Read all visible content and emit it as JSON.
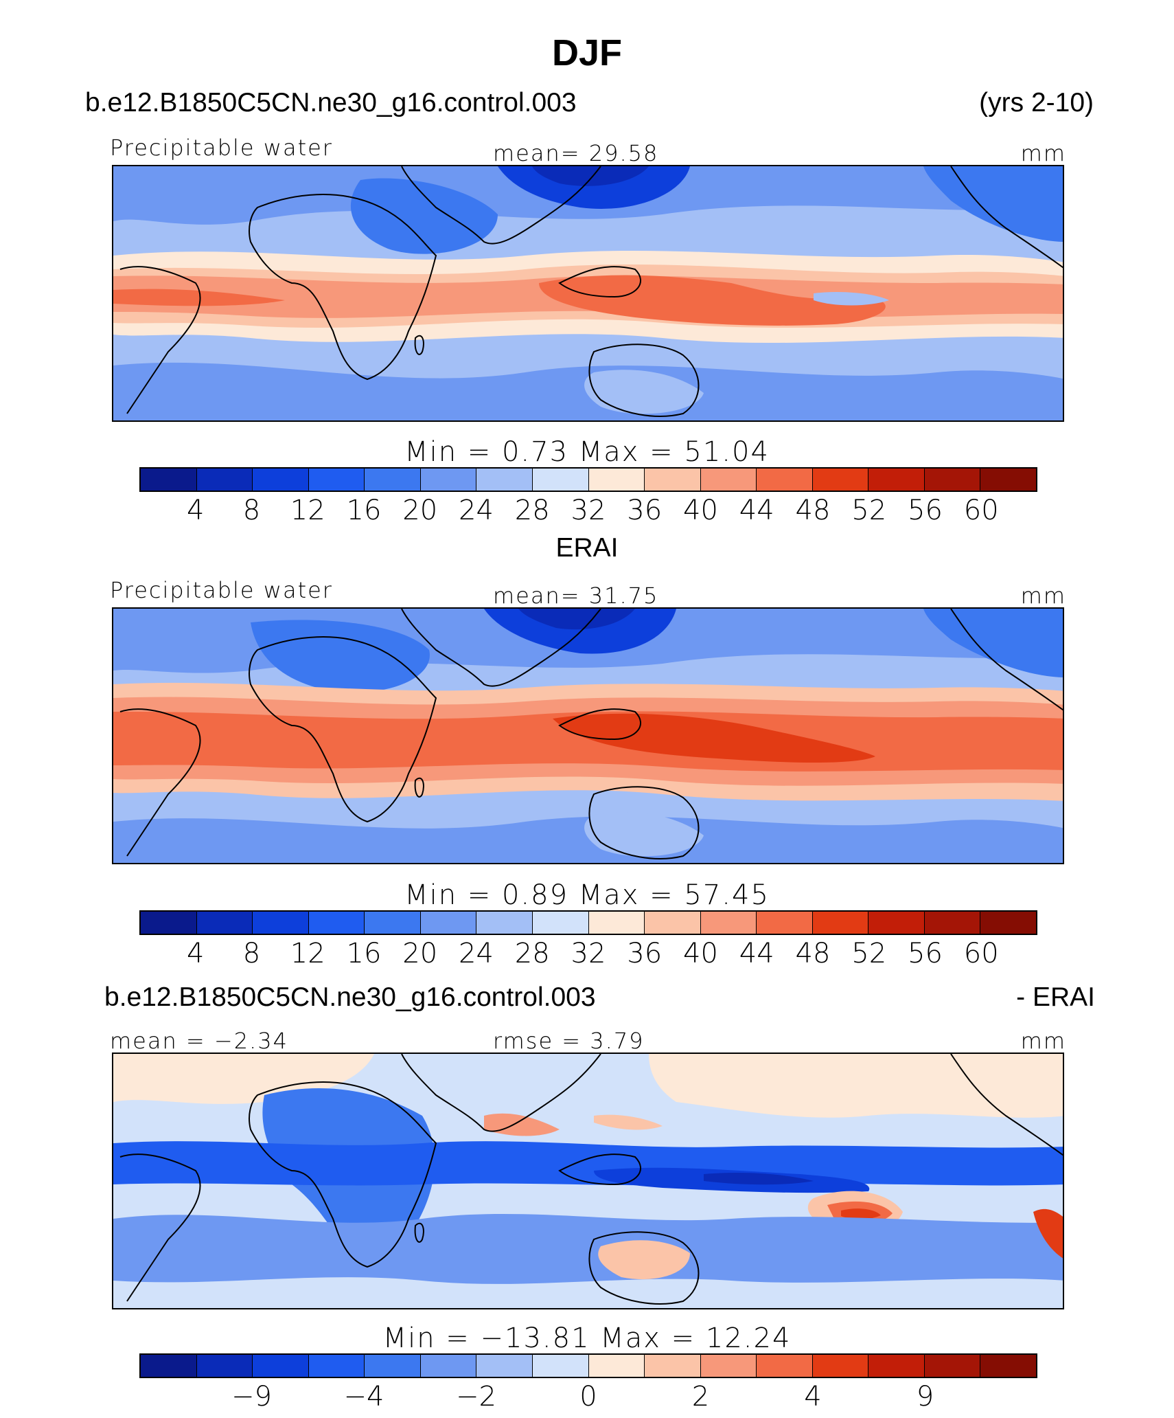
{
  "title": "DJF",
  "colors": {
    "scale": [
      "#0a1a8c",
      "#0a2bb8",
      "#0d3fdb",
      "#1f5cf0",
      "#3c78f0",
      "#6e98f2",
      "#a3bff6",
      "#d2e2fa",
      "#fde9d8",
      "#fbc4a8",
      "#f7987a",
      "#f26a45",
      "#e23b14",
      "#c21e08",
      "#a41506",
      "#850d03"
    ]
  },
  "panels": [
    {
      "id": "model",
      "header_left": "b.e12.B1850C5CN.ne30_g16.control.003",
      "header_right": "(yrs 2-10)",
      "variable": "Precipitable water",
      "stat_text": "mean=  29.58",
      "units": "mm",
      "minmax": "Min  =    0.73  Max  =   51.04",
      "ticks": [
        "4",
        "8",
        "12",
        "16",
        "20",
        "24",
        "28",
        "32",
        "36",
        "40",
        "44",
        "48",
        "52",
        "56",
        "60"
      ],
      "stats": {
        "mean": 29.58,
        "min": 0.73,
        "max": 51.04
      }
    },
    {
      "id": "obs",
      "header_center": "ERAI",
      "variable": "Precipitable water",
      "stat_text": "mean=  31.75",
      "units": "mm",
      "minmax": "Min  =    0.89  Max  =   57.45",
      "ticks": [
        "4",
        "8",
        "12",
        "16",
        "20",
        "24",
        "28",
        "32",
        "36",
        "40",
        "44",
        "48",
        "52",
        "56",
        "60"
      ],
      "stats": {
        "mean": 31.75,
        "min": 0.89,
        "max": 57.45
      }
    },
    {
      "id": "diff",
      "header_left": "b.e12.B1850C5CN.ne30_g16.control.003",
      "header_right": "- ERAI",
      "mean_text": "mean  =  −2.34",
      "rmse_text": "rmse  =     3.79",
      "units": "mm",
      "minmax": "Min  =  −13.81  Max  =   12.24",
      "ticks": [
        "−9",
        "−4",
        "−2",
        "0",
        "2",
        "4",
        "9"
      ],
      "stats": {
        "mean": -2.34,
        "rmse": 3.79,
        "min": -13.81,
        "max": 12.24
      }
    }
  ]
}
